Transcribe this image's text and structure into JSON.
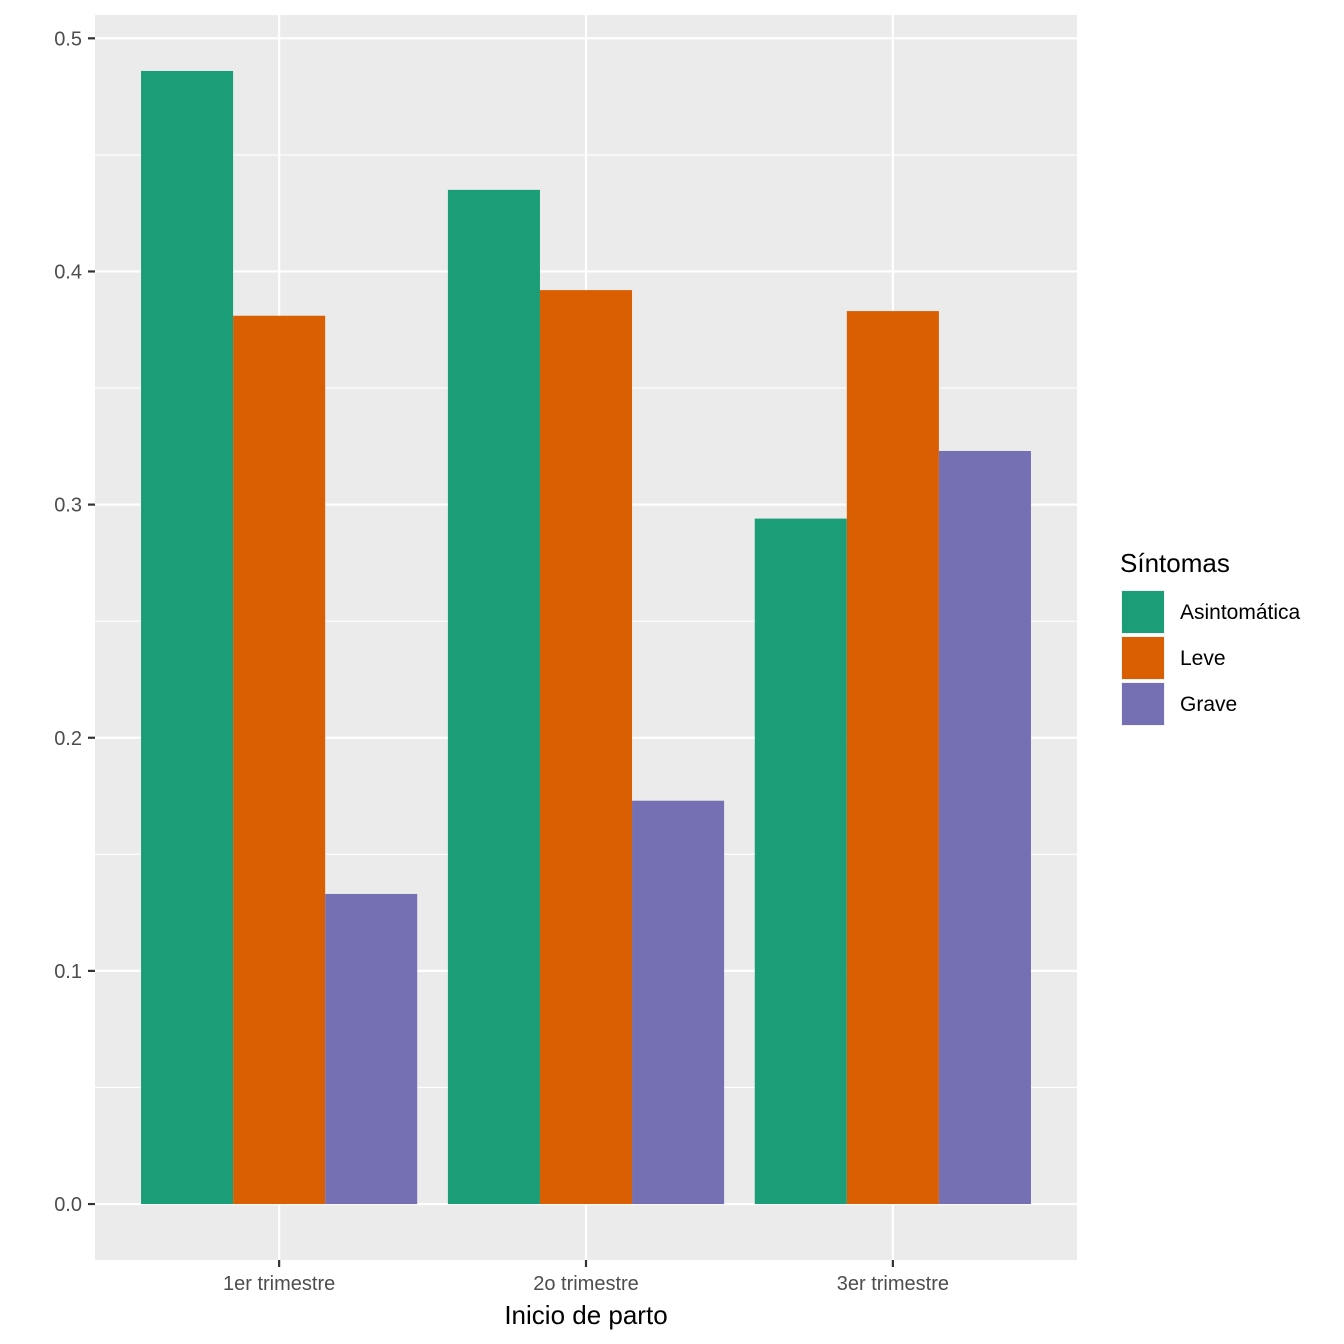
{
  "chart_data": {
    "type": "bar",
    "xlabel": "Inicio de parto",
    "ylabel": "",
    "categories": [
      "1er trimestre",
      "2o trimestre",
      "3er trimestre"
    ],
    "series": [
      {
        "name": "Asintomática",
        "color": "#1B9E77",
        "values": [
          0.486,
          0.435,
          0.294
        ]
      },
      {
        "name": "Leve",
        "color": "#D95F02",
        "values": [
          0.381,
          0.392,
          0.383
        ]
      },
      {
        "name": "Grave",
        "color": "#7570B3",
        "values": [
          0.133,
          0.173,
          0.323
        ]
      }
    ],
    "ylim": [
      -0.024,
      0.51
    ],
    "yticks": [
      0.0,
      0.1,
      0.2,
      0.3,
      0.4,
      0.5
    ],
    "ytick_labels": [
      "0.0",
      "0.1",
      "0.2",
      "0.3",
      "0.4",
      "0.5"
    ],
    "grid": true,
    "legend": {
      "title": "Síntomas",
      "position": "right"
    },
    "colors": {
      "panel": "#EBEBEB",
      "grid": "#FFFFFF",
      "tick_text": "#4D4D4D"
    }
  }
}
